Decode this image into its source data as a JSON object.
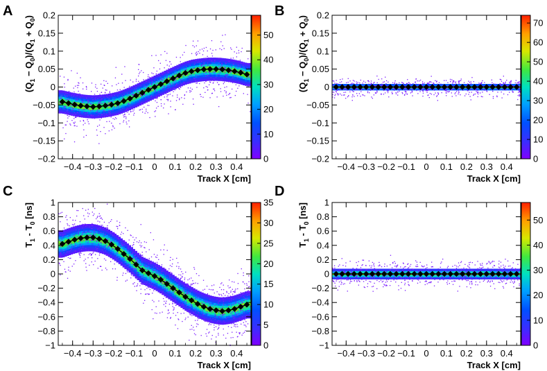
{
  "figure": {
    "x_title": "Track X [cm]"
  },
  "chart_data": [
    {
      "panel": "A",
      "type": "heatmap",
      "xlabel": "Track X [cm]",
      "ylabel_parts": [
        "(Q",
        "1",
        " − Q",
        "0",
        ")/(Q",
        "1",
        " + Q",
        "0",
        ")"
      ],
      "xlim": [
        -0.47,
        0.47
      ],
      "ylim": [
        -0.2,
        0.2
      ],
      "xticks": [
        -0.4,
        -0.3,
        -0.2,
        -0.1,
        0,
        0.1,
        0.2,
        0.3,
        0.4
      ],
      "xtick_labels": [
        "−0.4",
        "−0.3",
        "−0.2",
        "−0.1",
        "0",
        "0.1",
        "0.2",
        "0.3",
        "0.4"
      ],
      "yticks": [
        -0.2,
        -0.15,
        -0.1,
        -0.05,
        0,
        0.05,
        0.1,
        0.15,
        0.2
      ],
      "ytick_labels": [
        "−0.2",
        "−0.15",
        "−0.1",
        "−0.05",
        "0",
        "0.05",
        "0.1",
        "0.15",
        "0.2"
      ],
      "colorbar": {
        "range": [
          0,
          58
        ],
        "ticks": [
          0,
          10,
          20,
          30,
          40,
          50
        ],
        "labels": [
          "0",
          "10",
          "20",
          "30",
          "40",
          "50"
        ]
      },
      "profile": {
        "x": [
          -0.45,
          -0.42,
          -0.39,
          -0.36,
          -0.33,
          -0.3,
          -0.27,
          -0.24,
          -0.21,
          -0.18,
          -0.15,
          -0.12,
          -0.09,
          -0.06,
          -0.03,
          0.0,
          0.03,
          0.06,
          0.09,
          0.12,
          0.15,
          0.18,
          0.21,
          0.24,
          0.27,
          0.3,
          0.33,
          0.36,
          0.39,
          0.42,
          0.45
        ],
        "y": [
          -0.041,
          -0.045,
          -0.049,
          -0.052,
          -0.054,
          -0.055,
          -0.054,
          -0.052,
          -0.049,
          -0.045,
          -0.039,
          -0.032,
          -0.024,
          -0.016,
          -0.008,
          0.0,
          0.008,
          0.016,
          0.024,
          0.032,
          0.039,
          0.044,
          0.047,
          0.049,
          0.05,
          0.05,
          0.049,
          0.047,
          0.044,
          0.04,
          0.035
        ]
      },
      "band_sigma_core": 0.012
    },
    {
      "panel": "B",
      "type": "heatmap",
      "xlabel": "Track X [cm]",
      "ylabel_parts": [
        "(Q",
        "1",
        " − Q",
        "0",
        ")/(Q",
        "1",
        " + Q",
        "0",
        ")"
      ],
      "xlim": [
        -0.47,
        0.47
      ],
      "ylim": [
        -0.2,
        0.2
      ],
      "xticks": [
        -0.4,
        -0.3,
        -0.2,
        -0.1,
        0,
        0.1,
        0.2,
        0.3,
        0.4
      ],
      "xtick_labels": [
        "−0.4",
        "−0.3",
        "−0.2",
        "−0.1",
        "0",
        "0.1",
        "0.2",
        "0.3",
        "0.4"
      ],
      "yticks": [
        -0.2,
        -0.15,
        -0.1,
        -0.05,
        0,
        0.05,
        0.1,
        0.15,
        0.2
      ],
      "ytick_labels": [
        "−0.2",
        "−0.15",
        "−0.1",
        "−0.05",
        "0",
        "0.05",
        "0.1",
        "0.15",
        "0.2"
      ],
      "colorbar": {
        "range": [
          0,
          74
        ],
        "ticks": [
          0,
          10,
          20,
          30,
          40,
          50,
          60,
          70
        ],
        "labels": [
          "0",
          "10",
          "20",
          "30",
          "40",
          "50",
          "60",
          "70"
        ]
      },
      "profile": {
        "x": [
          -0.45,
          -0.42,
          -0.39,
          -0.36,
          -0.33,
          -0.3,
          -0.27,
          -0.24,
          -0.21,
          -0.18,
          -0.15,
          -0.12,
          -0.09,
          -0.06,
          -0.03,
          0.0,
          0.03,
          0.06,
          0.09,
          0.12,
          0.15,
          0.18,
          0.21,
          0.24,
          0.27,
          0.3,
          0.33,
          0.36,
          0.39,
          0.42,
          0.45
        ],
        "y": [
          0,
          0,
          0,
          0,
          0,
          0,
          0,
          0,
          0,
          0,
          0,
          0,
          0,
          0,
          0,
          0,
          0,
          0,
          0,
          0,
          0,
          0,
          0,
          0,
          0,
          0,
          0,
          0,
          0,
          0,
          0
        ]
      },
      "band_sigma_core": 0.004
    },
    {
      "panel": "C",
      "type": "heatmap",
      "xlabel": "Track X [cm]",
      "ylabel_parts": [
        "T",
        "1",
        " - T",
        "0",
        " [ns]"
      ],
      "xlim": [
        -0.47,
        0.47
      ],
      "ylim": [
        -1,
        1
      ],
      "xticks": [
        -0.4,
        -0.3,
        -0.2,
        -0.1,
        0,
        0.1,
        0.2,
        0.3,
        0.4
      ],
      "xtick_labels": [
        "−0.4",
        "−0.3",
        "−0.2",
        "−0.1",
        "0",
        "0.1",
        "0.2",
        "0.3",
        "0.4"
      ],
      "yticks": [
        -1,
        -0.8,
        -0.6,
        -0.4,
        -0.2,
        0,
        0.2,
        0.4,
        0.6,
        0.8,
        1
      ],
      "ytick_labels": [
        "−1",
        "−0.8",
        "−0.6",
        "−0.4",
        "−0.2",
        "0",
        "0.2",
        "0.4",
        "0.6",
        "0.8",
        "1"
      ],
      "colorbar": {
        "range": [
          0,
          35
        ],
        "ticks": [
          0,
          5,
          10,
          15,
          20,
          25,
          30,
          35
        ],
        "labels": [
          "0",
          "5",
          "10",
          "15",
          "20",
          "25",
          "30",
          "35"
        ]
      },
      "profile": {
        "x": [
          -0.45,
          -0.42,
          -0.39,
          -0.36,
          -0.33,
          -0.3,
          -0.27,
          -0.24,
          -0.21,
          -0.18,
          -0.15,
          -0.12,
          -0.09,
          -0.06,
          -0.03,
          0.0,
          0.03,
          0.06,
          0.09,
          0.12,
          0.15,
          0.18,
          0.21,
          0.24,
          0.27,
          0.3,
          0.33,
          0.36,
          0.39,
          0.42,
          0.45
        ],
        "y": [
          0.42,
          0.45,
          0.48,
          0.5,
          0.51,
          0.51,
          0.49,
          0.46,
          0.41,
          0.35,
          0.28,
          0.21,
          0.13,
          0.05,
          0.01,
          -0.03,
          -0.08,
          -0.14,
          -0.2,
          -0.26,
          -0.32,
          -0.37,
          -0.42,
          -0.46,
          -0.49,
          -0.51,
          -0.52,
          -0.51,
          -0.49,
          -0.46,
          -0.43
        ]
      },
      "band_sigma_core": 0.07
    },
    {
      "panel": "D",
      "type": "heatmap",
      "xlabel": "Track X [cm]",
      "ylabel_parts": [
        "T",
        "1",
        " - T",
        "0",
        " [ns]"
      ],
      "xlim": [
        -0.47,
        0.47
      ],
      "ylim": [
        -1,
        1
      ],
      "xticks": [
        -0.4,
        -0.3,
        -0.2,
        -0.1,
        0,
        0.1,
        0.2,
        0.3,
        0.4
      ],
      "xtick_labels": [
        "−0.4",
        "−0.3",
        "−0.2",
        "−0.1",
        "0",
        "0.1",
        "0.2",
        "0.3",
        "0.4"
      ],
      "yticks": [
        -1,
        -0.8,
        -0.6,
        -0.4,
        -0.2,
        0,
        0.2,
        0.4,
        0.6,
        0.8,
        1
      ],
      "ytick_labels": [
        "−1",
        "−0.8",
        "−0.6",
        "−0.4",
        "−0.2",
        "0",
        "0.2",
        "0.4",
        "0.6",
        "0.8",
        "1"
      ],
      "colorbar": {
        "range": [
          0,
          57
        ],
        "ticks": [
          0,
          10,
          20,
          30,
          40,
          50
        ],
        "labels": [
          "0",
          "10",
          "20",
          "30",
          "40",
          "50"
        ]
      },
      "profile": {
        "x": [
          -0.45,
          -0.42,
          -0.39,
          -0.36,
          -0.33,
          -0.3,
          -0.27,
          -0.24,
          -0.21,
          -0.18,
          -0.15,
          -0.12,
          -0.09,
          -0.06,
          -0.03,
          0.0,
          0.03,
          0.06,
          0.09,
          0.12,
          0.15,
          0.18,
          0.21,
          0.24,
          0.27,
          0.3,
          0.33,
          0.36,
          0.39,
          0.42,
          0.45
        ],
        "y": [
          0,
          0,
          0,
          0,
          0,
          0,
          0,
          0,
          0,
          0,
          0,
          0,
          0,
          0,
          0,
          0,
          0,
          0,
          0,
          0,
          0,
          0,
          0,
          0,
          0,
          0,
          0,
          0,
          0,
          0,
          0
        ]
      },
      "band_sigma_core": 0.03
    }
  ]
}
